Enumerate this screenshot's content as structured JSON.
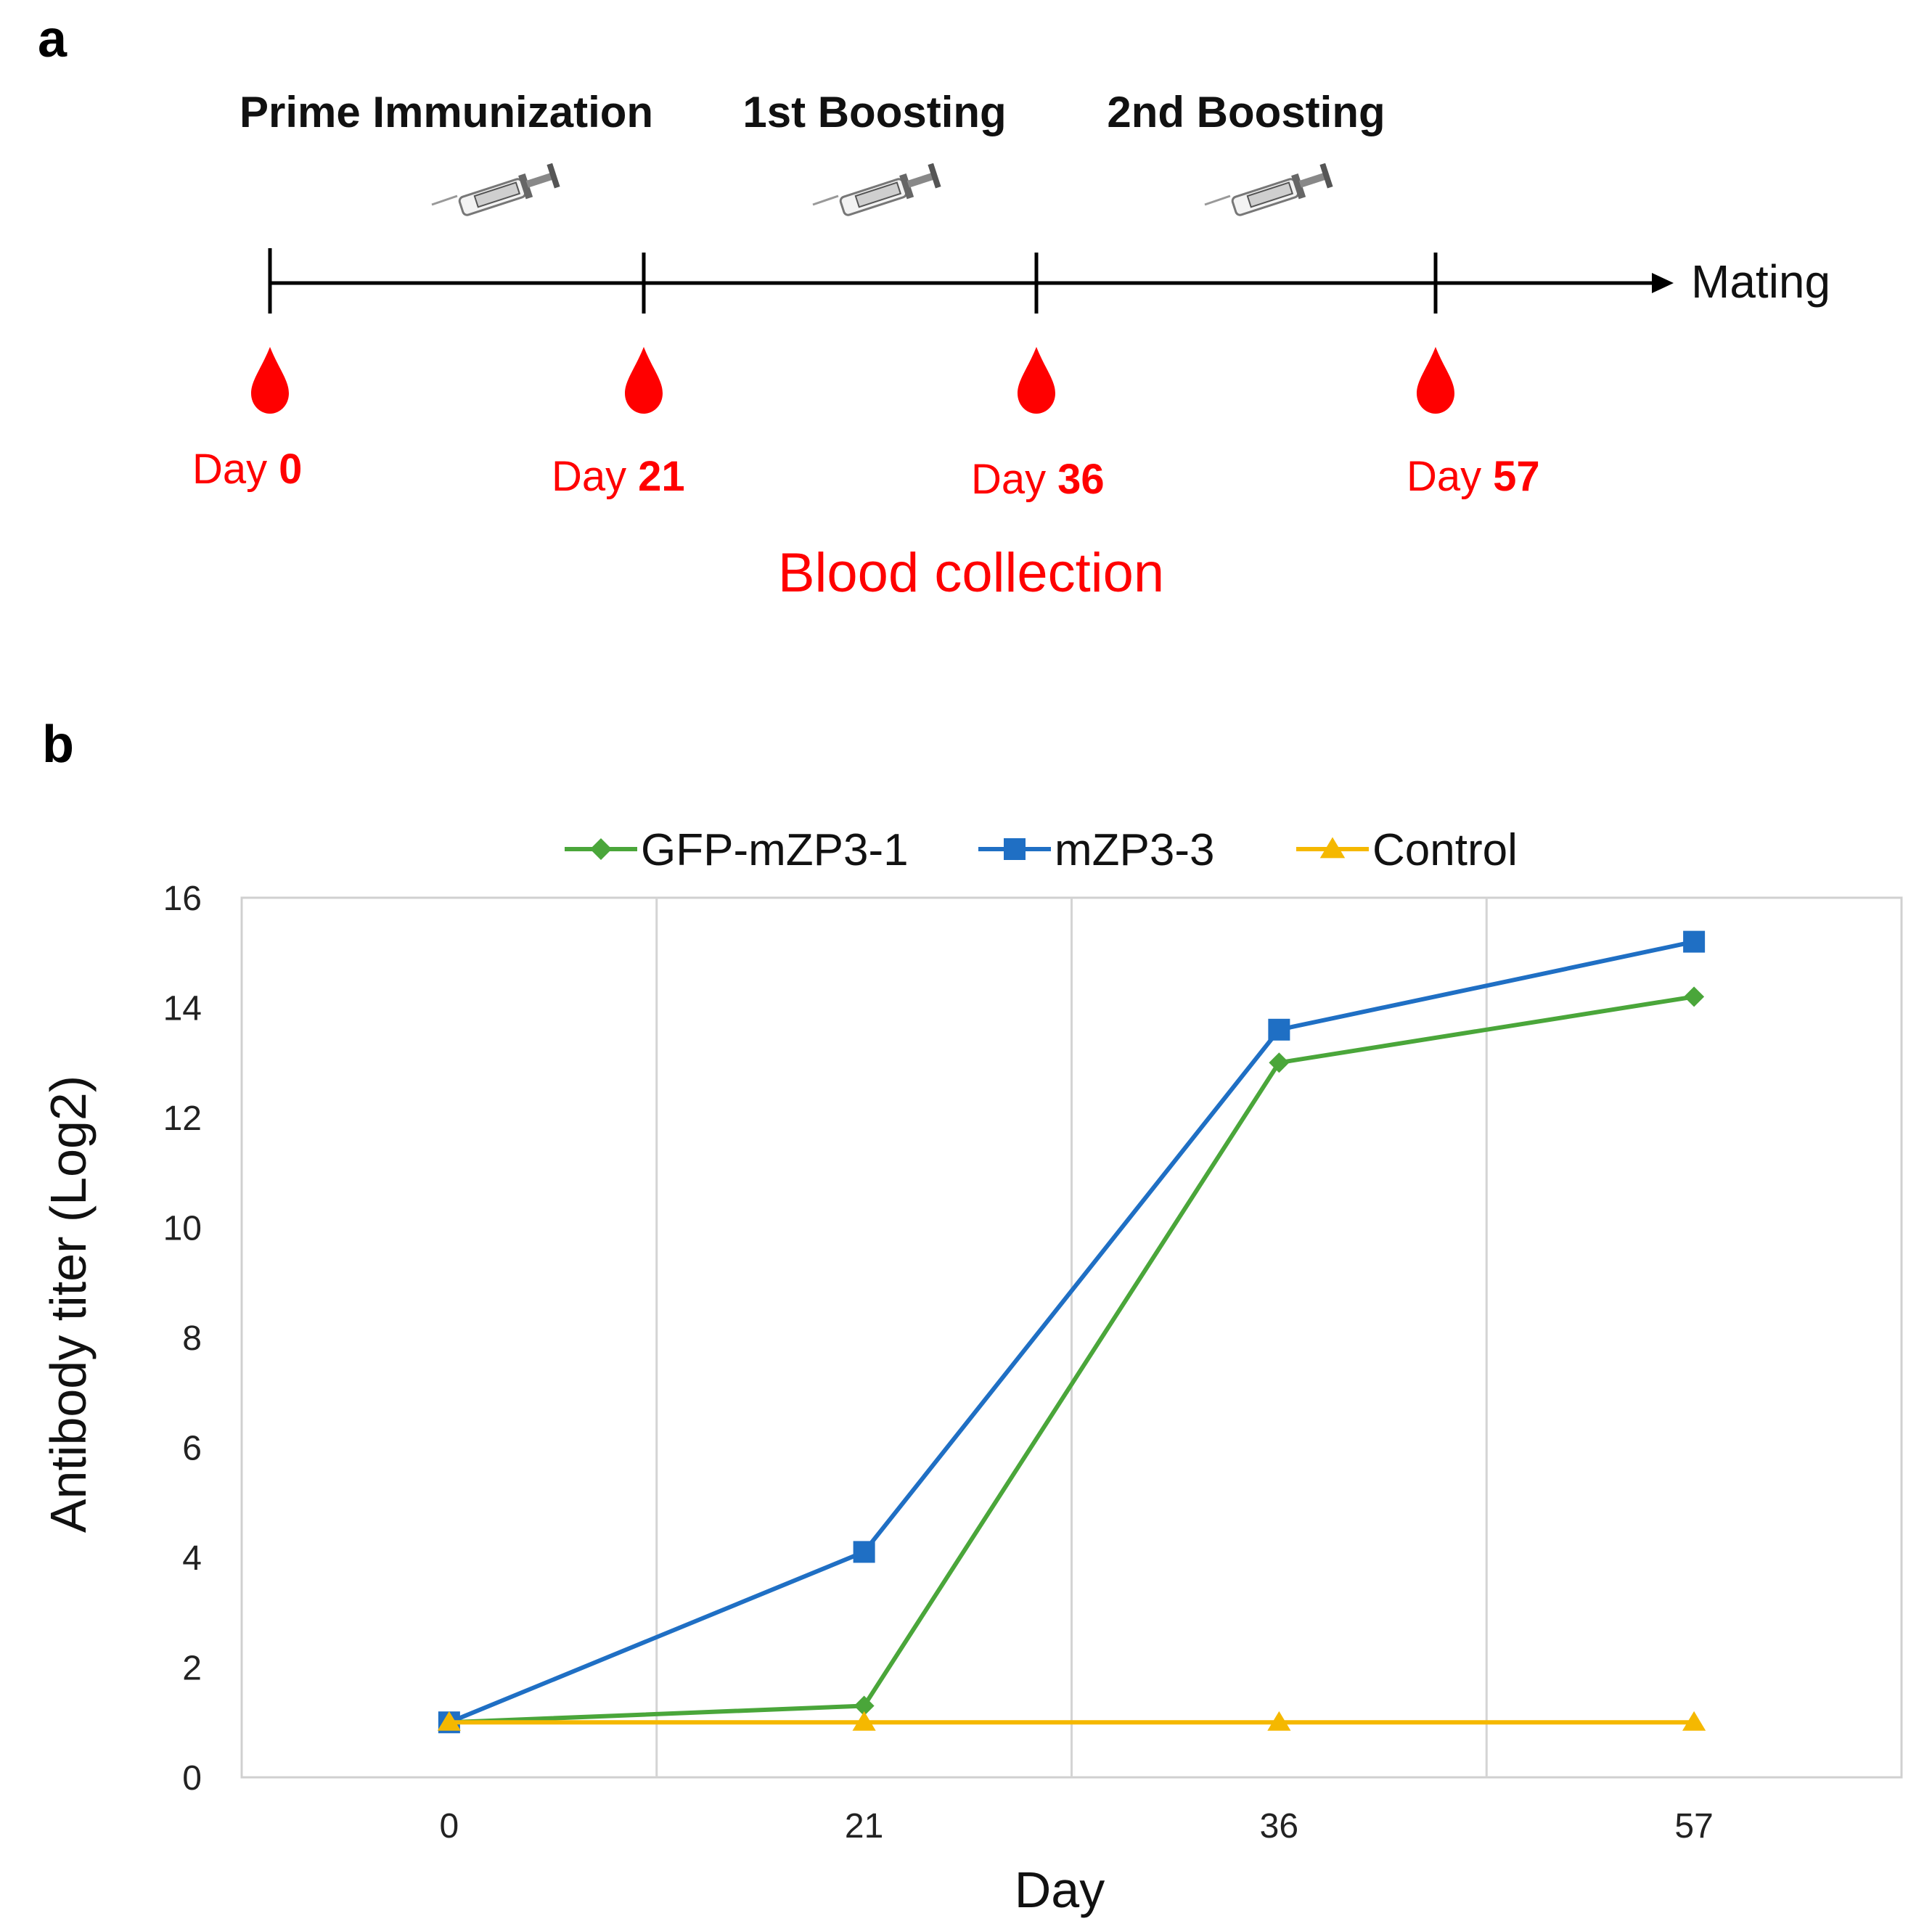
{
  "panel_a": {
    "letter": "a",
    "steps": [
      "Prime Immunization",
      "1st Boosting",
      "2nd Boosting"
    ],
    "end_label": "Mating",
    "day_word": "Day",
    "days": [
      "0",
      "21",
      "36",
      "57"
    ],
    "caption": "Blood collection",
    "colors": {
      "blood": "#ff0000",
      "timeline": "#000000"
    },
    "icons": [
      "syringe-icon",
      "blood-drop-icon"
    ]
  },
  "panel_b": {
    "letter": "b"
  },
  "chart_data": {
    "type": "line",
    "title": "",
    "xlabel": "Day",
    "ylabel": "Antibody titer (Log2)",
    "categories": [
      "0",
      "21",
      "36",
      "57"
    ],
    "ylim": [
      0,
      16
    ],
    "yticks": [
      0,
      2,
      4,
      6,
      8,
      10,
      12,
      14,
      16
    ],
    "grid": "vertical",
    "legend": "top",
    "series": [
      {
        "name": "GFP-mZP3-1",
        "values": [
          1,
          1.3,
          13,
          14.2
        ],
        "color": "#4aa63a",
        "marker": "diamond"
      },
      {
        "name": "mZP3-3",
        "values": [
          1,
          4.1,
          13.6,
          15.2
        ],
        "color": "#1f6fc4",
        "marker": "square"
      },
      {
        "name": "Control",
        "values": [
          1,
          1,
          1,
          1
        ],
        "color": "#f5b800",
        "marker": "triangle"
      }
    ]
  }
}
